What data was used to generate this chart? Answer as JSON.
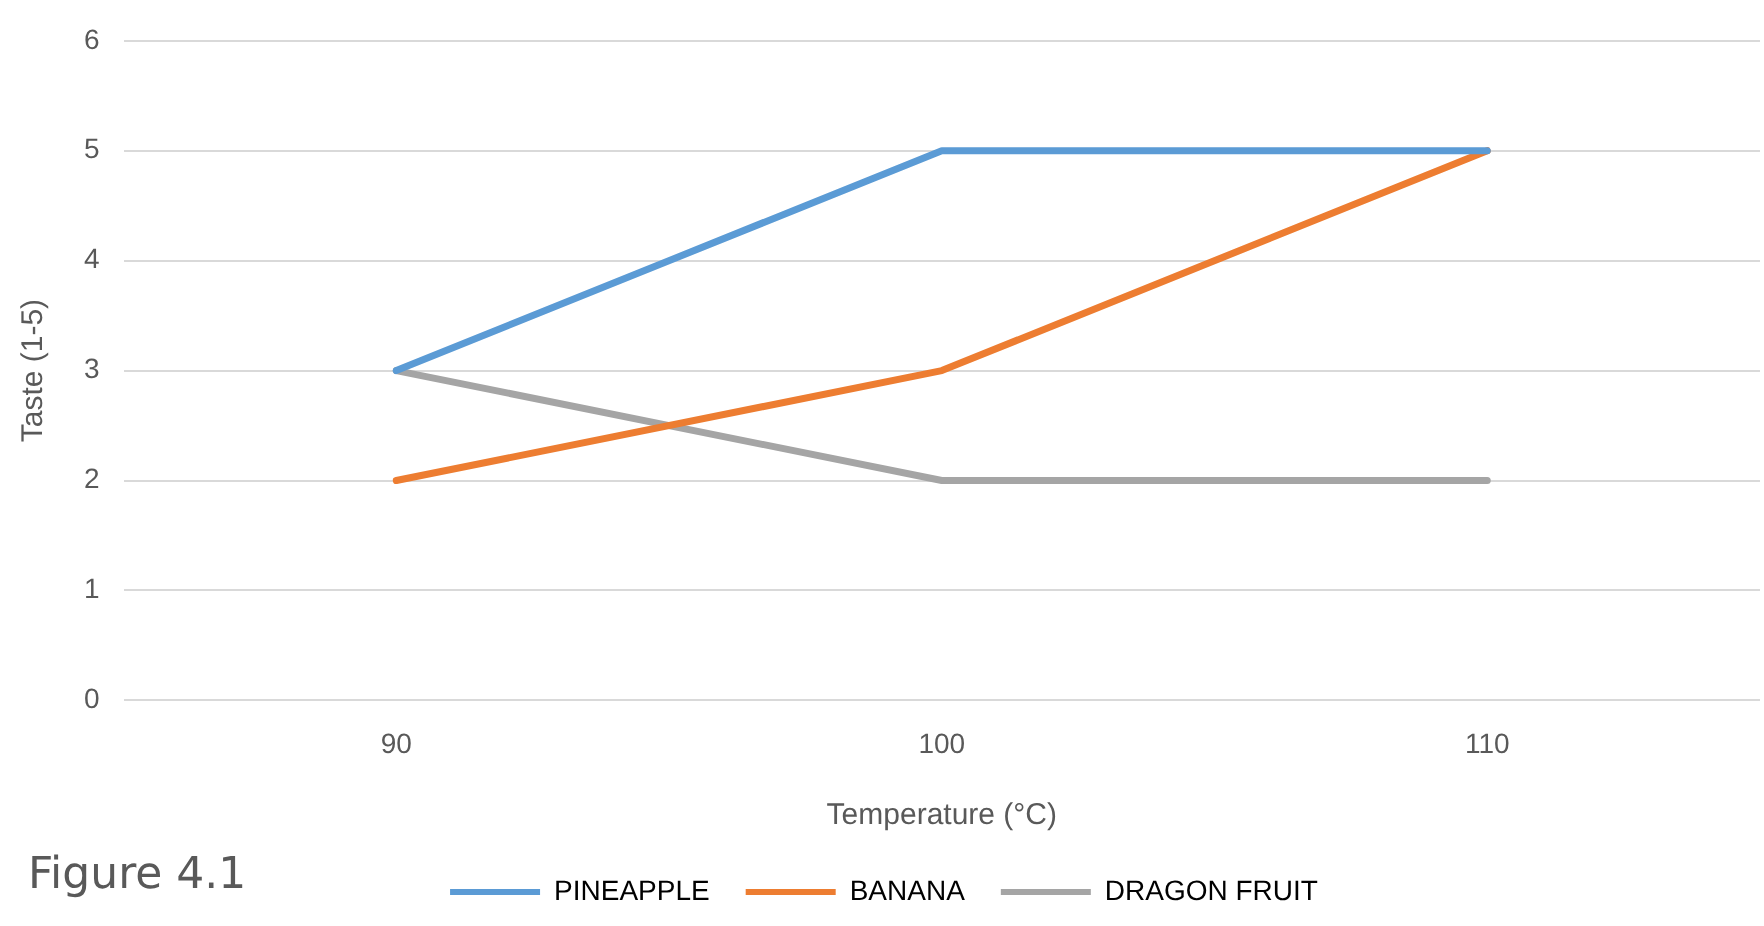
{
  "chart_data": {
    "type": "line",
    "xlabel": "Temperature (°C)",
    "ylabel": "Taste (1-5)",
    "categories": [
      "90",
      "100",
      "110"
    ],
    "series": [
      {
        "name": "PINEAPPLE",
        "color": "#5b9bd5",
        "values": [
          3,
          5,
          5
        ]
      },
      {
        "name": "BANANA",
        "color": "#ed7d31",
        "values": [
          2,
          3,
          5
        ]
      },
      {
        "name": "DRAGON FRUIT",
        "color": "#a5a5a5",
        "values": [
          3,
          2,
          2
        ]
      }
    ],
    "ylim": [
      0,
      6
    ],
    "yticks": [
      0,
      1,
      2,
      3,
      4,
      5,
      6
    ],
    "grid": "y",
    "legend": "bottom",
    "marker": "none",
    "line_style": "solid",
    "annotations": [
      "Figure 4.1"
    ]
  }
}
